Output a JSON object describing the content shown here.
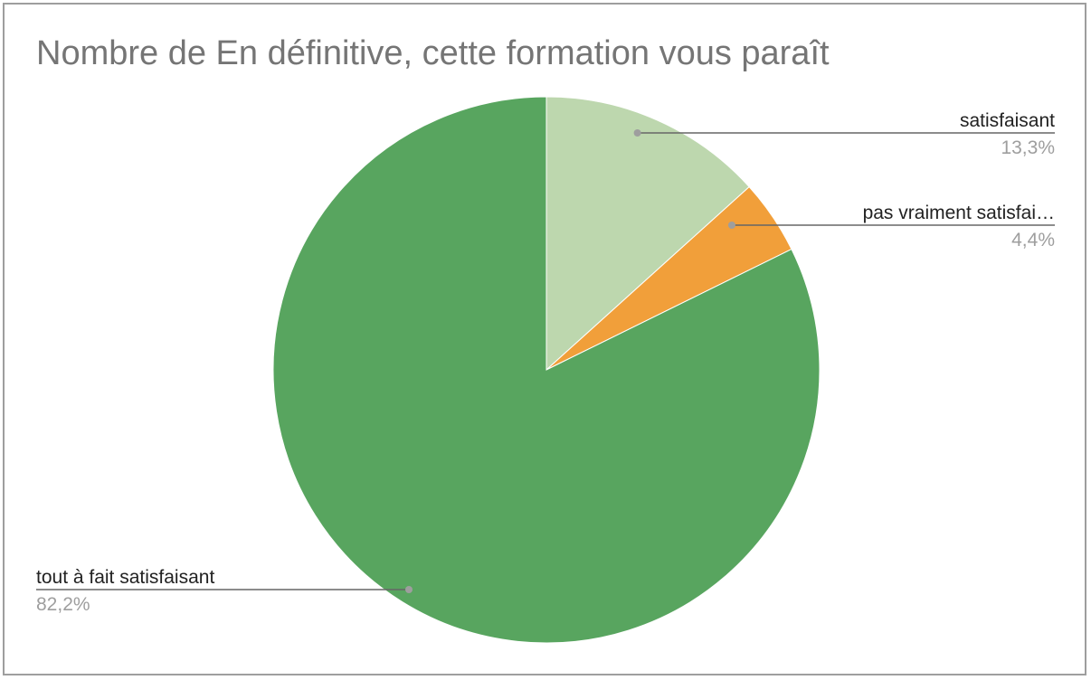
{
  "chart_data": {
    "type": "pie",
    "title": "Nombre de En définitive, cette formation vous paraît",
    "slices": [
      {
        "label": "satisfaisant",
        "value": 13.3,
        "percent_label": "13,3%",
        "color": "#bdd7ae"
      },
      {
        "label": "pas vraiment satisfai…",
        "value": 4.4,
        "percent_label": "4,4%",
        "color": "#f19f3a"
      },
      {
        "label": "tout à fait satisfaisant",
        "value": 82.2,
        "percent_label": "82,2%",
        "color": "#58a55f"
      }
    ],
    "start_angle": "12 o'clock",
    "direction": "clockwise",
    "legend": "none (labels with leader lines)"
  }
}
